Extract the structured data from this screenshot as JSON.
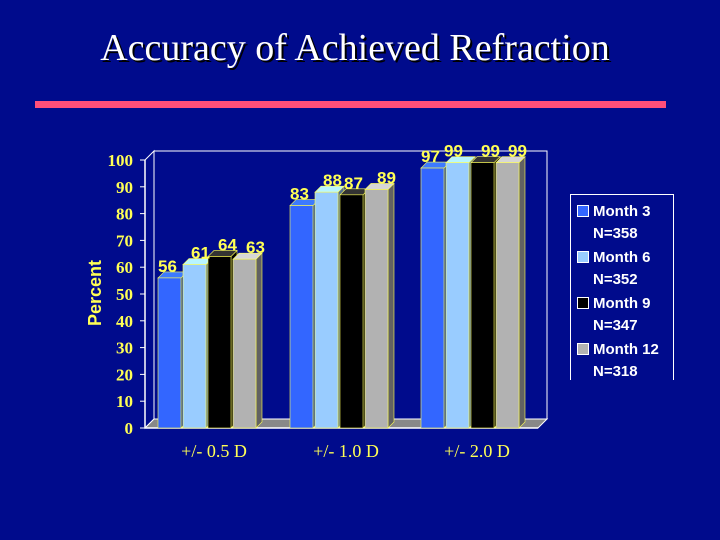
{
  "slide": {
    "title": "Accuracy of Achieved Refraction"
  },
  "colors": {
    "background": "#000b8c",
    "rule": "#ff4f7a",
    "text": "#ffff55",
    "legend_text": "#ffffff"
  },
  "chart_data": {
    "type": "bar",
    "title": "Accuracy of Achieved Refraction",
    "ylabel": "Percent",
    "xlabel": "",
    "ylim": [
      0,
      100
    ],
    "yticks": [
      0,
      10,
      20,
      30,
      40,
      50,
      60,
      70,
      80,
      90,
      100
    ],
    "categories": [
      "+/- 0.5 D",
      "+/- 1.0 D",
      "+/- 2.0 D"
    ],
    "grid": false,
    "legend_position": "right",
    "series": [
      {
        "name": "Month 3",
        "sub": "N=358",
        "color": "#3366ff",
        "values": [
          56,
          83,
          97
        ]
      },
      {
        "name": "Month 6",
        "sub": "N=352",
        "color": "#99ccff",
        "values": [
          61,
          88,
          99
        ]
      },
      {
        "name": "Month 9",
        "sub": "N=347",
        "color": "#000000",
        "values": [
          64,
          87,
          99
        ]
      },
      {
        "name": "Month 12",
        "sub": "N=318",
        "color": "#b2b2b2",
        "values": [
          63,
          89,
          99
        ]
      }
    ]
  }
}
